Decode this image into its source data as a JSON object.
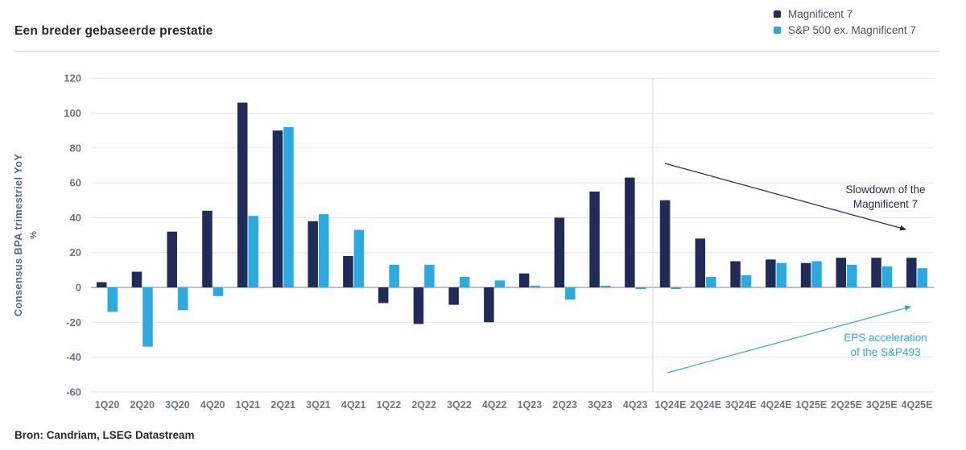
{
  "header": {
    "title": "Een breder gebaseerde prestatie",
    "legend": [
      {
        "label": "Magnificent 7",
        "color": "#1f2b58",
        "icon": "legend-swatch-square"
      },
      {
        "label": "S&P 500 ex. Magnificent 7",
        "color": "#29abe2",
        "icon": "legend-swatch-square"
      }
    ]
  },
  "footer": {
    "source": "Bron: Candriam, LSEG Datastream"
  },
  "chart_data": {
    "type": "bar",
    "title": "Een breder gebaseerde prestatie",
    "xlabel": "",
    "ylabel": "Consensus BPA trimestriel YoY",
    "ylabel_unit": "%",
    "ylim": [
      -60,
      120
    ],
    "ytick_step": 20,
    "grid": true,
    "legend_position": "top-right",
    "categories": [
      "1Q20",
      "2Q20",
      "3Q20",
      "4Q20",
      "1Q21",
      "2Q21",
      "3Q21",
      "4Q21",
      "1Q22",
      "2Q22",
      "3Q22",
      "4Q22",
      "1Q23",
      "2Q23",
      "3Q23",
      "4Q23",
      "1Q24E",
      "2Q24E",
      "3Q24E",
      "4Q24E",
      "1Q25E",
      "2Q25E",
      "3Q25E",
      "4Q25E"
    ],
    "series": [
      {
        "name": "Magnificent 7",
        "color": "#1f2b58",
        "values": [
          3,
          9,
          32,
          44,
          106,
          90,
          38,
          18,
          -9,
          -21,
          -10,
          -20,
          8,
          40,
          55,
          63,
          50,
          28,
          15,
          16,
          14,
          17,
          17,
          17
        ]
      },
      {
        "name": "S&P 500 ex. Magnificent 7",
        "color": "#29abe2",
        "values": [
          -14,
          -34,
          -13,
          -5,
          41,
          92,
          42,
          33,
          13,
          13,
          6,
          4,
          1,
          -7,
          1,
          -1,
          -1,
          6,
          7,
          14,
          15,
          13,
          12,
          11
        ]
      }
    ],
    "separator_after": "4Q23",
    "annotations": [
      {
        "text": "Slowdown of the\nMagnificent 7",
        "color": "#1f2b58",
        "arrow": {
          "from": [
            826,
            203
          ],
          "to": [
            1125,
            285
          ]
        },
        "text_x": 1100,
        "text_y": 240
      },
      {
        "text": "EPS acceleration\nof the S&P493",
        "color": "#29abe2",
        "arrow": {
          "from": [
            829,
            463
          ],
          "to": [
            1131,
            381
          ]
        },
        "text_x": 1100,
        "text_y": 424
      }
    ],
    "colors": {
      "gridline": "#e6e6ea",
      "zero_line": "#81818a",
      "separator_line": "#d8d8de"
    }
  }
}
